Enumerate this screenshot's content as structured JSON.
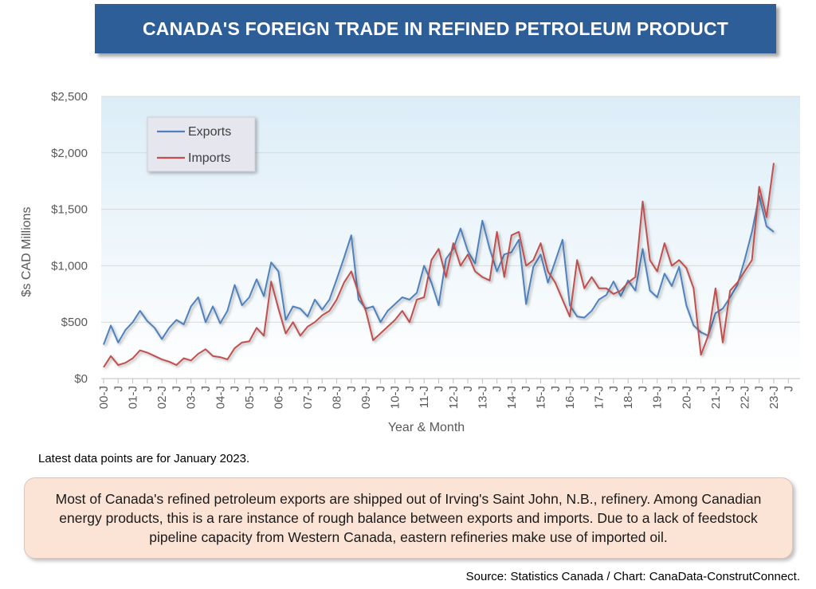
{
  "title": "CANADA'S FOREIGN TRADE IN REFINED PETROLEUM PRODUCT",
  "note": "Latest data points are for January 2023.",
  "callout": "Most of Canada's refined petroleum exports are shipped out of Irving's Saint John, N.B., refinery. Among Canadian energy products, this is a rare instance of rough balance between exports and imports. Due to a lack of feedstock pipeline capacity from Western Canada, eastern refineries make use of imported oil.",
  "source": "Source: Statistics Canada / Chart: CanaData-ConstrutConnect.",
  "chart_data": {
    "type": "line",
    "title": "CANADA'S FOREIGN TRADE IN REFINED PETROLEUM PRODUCT",
    "xlabel": "Year & Month",
    "ylabel": "$s CAD Millions",
    "ylim": [
      0,
      2500
    ],
    "yticks": [
      "$0",
      "$500",
      "$1,000",
      "$1,500",
      "$2,000",
      "$2,500"
    ],
    "xlim": [
      2000.0,
      2023.0
    ],
    "xtick_labels": [
      "00-J",
      "J",
      "01-J",
      "J",
      "02-J",
      "J",
      "03-J",
      "J",
      "04-J",
      "J",
      "05-J",
      "J",
      "06-J",
      "J",
      "07-J",
      "J",
      "08-J",
      "J",
      "09-J",
      "J",
      "10-J",
      "J",
      "11-J",
      "J",
      "12-J",
      "J",
      "13-J",
      "J",
      "14-J",
      "J",
      "15-J",
      "J",
      "16-J",
      "J",
      "17-J",
      "J",
      "18-J",
      "J",
      "19-J",
      "J",
      "20-J",
      "J",
      "21-J",
      "J",
      "22-J",
      "J",
      "23-J",
      "J"
    ],
    "grid": "horizontal",
    "legend": "top-left",
    "colors": {
      "Exports": "#4f81bd",
      "Imports": "#c0504d"
    },
    "series": [
      {
        "name": "Exports",
        "x": [
          2000.0,
          2000.25,
          2000.5,
          2000.75,
          2001.0,
          2001.25,
          2001.5,
          2001.75,
          2002.0,
          2002.25,
          2002.5,
          2002.75,
          2003.0,
          2003.25,
          2003.5,
          2003.75,
          2004.0,
          2004.25,
          2004.5,
          2004.75,
          2005.0,
          2005.25,
          2005.5,
          2005.75,
          2006.0,
          2006.25,
          2006.5,
          2006.75,
          2007.0,
          2007.25,
          2007.5,
          2007.75,
          2008.0,
          2008.25,
          2008.5,
          2008.75,
          2009.0,
          2009.25,
          2009.5,
          2009.75,
          2010.0,
          2010.25,
          2010.5,
          2010.75,
          2011.0,
          2011.25,
          2011.5,
          2011.75,
          2012.0,
          2012.25,
          2012.5,
          2012.75,
          2013.0,
          2013.25,
          2013.5,
          2013.75,
          2014.0,
          2014.25,
          2014.5,
          2014.75,
          2015.0,
          2015.25,
          2015.5,
          2015.75,
          2016.0,
          2016.25,
          2016.5,
          2016.75,
          2017.0,
          2017.25,
          2017.5,
          2017.75,
          2018.0,
          2018.25,
          2018.5,
          2018.75,
          2019.0,
          2019.25,
          2019.5,
          2019.75,
          2020.0,
          2020.25,
          2020.5,
          2020.75,
          2021.0,
          2021.25,
          2021.5,
          2021.75,
          2022.0,
          2022.25,
          2022.5,
          2022.75,
          2023.0
        ],
        "values": [
          300,
          470,
          320,
          430,
          500,
          600,
          510,
          450,
          350,
          450,
          520,
          480,
          640,
          720,
          500,
          640,
          490,
          600,
          830,
          650,
          720,
          880,
          730,
          1030,
          950,
          520,
          640,
          620,
          550,
          700,
          610,
          700,
          880,
          1070,
          1270,
          700,
          620,
          640,
          500,
          600,
          660,
          720,
          700,
          760,
          1000,
          850,
          650,
          1060,
          1150,
          1330,
          1130,
          1020,
          1400,
          1150,
          950,
          1100,
          1120,
          1230,
          660,
          990,
          1100,
          850,
          1040,
          1230,
          650,
          550,
          540,
          600,
          700,
          740,
          860,
          730,
          870,
          780,
          1150,
          780,
          720,
          930,
          820,
          990,
          650,
          470,
          410,
          380,
          580,
          620,
          720,
          830,
          1050,
          1300,
          1620,
          1350,
          1300
        ]
      },
      {
        "name": "Imports",
        "x": [
          2000.0,
          2000.25,
          2000.5,
          2000.75,
          2001.0,
          2001.25,
          2001.5,
          2001.75,
          2002.0,
          2002.25,
          2002.5,
          2002.75,
          2003.0,
          2003.25,
          2003.5,
          2003.75,
          2004.0,
          2004.25,
          2004.5,
          2004.75,
          2005.0,
          2005.25,
          2005.5,
          2005.75,
          2006.0,
          2006.25,
          2006.5,
          2006.75,
          2007.0,
          2007.25,
          2007.5,
          2007.75,
          2008.0,
          2008.25,
          2008.5,
          2008.75,
          2009.0,
          2009.25,
          2009.5,
          2009.75,
          2010.0,
          2010.25,
          2010.5,
          2010.75,
          2011.0,
          2011.25,
          2011.5,
          2011.75,
          2012.0,
          2012.25,
          2012.5,
          2012.75,
          2013.0,
          2013.25,
          2013.5,
          2013.75,
          2014.0,
          2014.25,
          2014.5,
          2014.75,
          2015.0,
          2015.25,
          2015.5,
          2015.75,
          2016.0,
          2016.25,
          2016.5,
          2016.75,
          2017.0,
          2017.25,
          2017.5,
          2017.75,
          2018.0,
          2018.25,
          2018.5,
          2018.75,
          2019.0,
          2019.25,
          2019.5,
          2019.75,
          2020.0,
          2020.25,
          2020.5,
          2020.75,
          2021.0,
          2021.25,
          2021.5,
          2021.75,
          2022.0,
          2022.25,
          2022.5,
          2022.75,
          2023.0
        ],
        "values": [
          100,
          200,
          120,
          140,
          180,
          250,
          230,
          200,
          170,
          150,
          120,
          180,
          160,
          220,
          260,
          200,
          190,
          170,
          270,
          320,
          330,
          450,
          380,
          860,
          620,
          400,
          500,
          380,
          460,
          500,
          560,
          600,
          700,
          850,
          950,
          760,
          600,
          340,
          400,
          460,
          520,
          600,
          500,
          700,
          720,
          1050,
          1150,
          900,
          1200,
          1000,
          1100,
          950,
          900,
          870,
          1300,
          900,
          1270,
          1300,
          1000,
          1050,
          1200,
          950,
          850,
          700,
          550,
          1050,
          800,
          900,
          800,
          800,
          750,
          780,
          850,
          900,
          1570,
          1050,
          950,
          1200,
          1000,
          1050,
          980,
          800,
          210,
          380,
          800,
          320,
          780,
          850,
          950,
          1050,
          1700,
          1430,
          1910
        ]
      }
    ]
  }
}
